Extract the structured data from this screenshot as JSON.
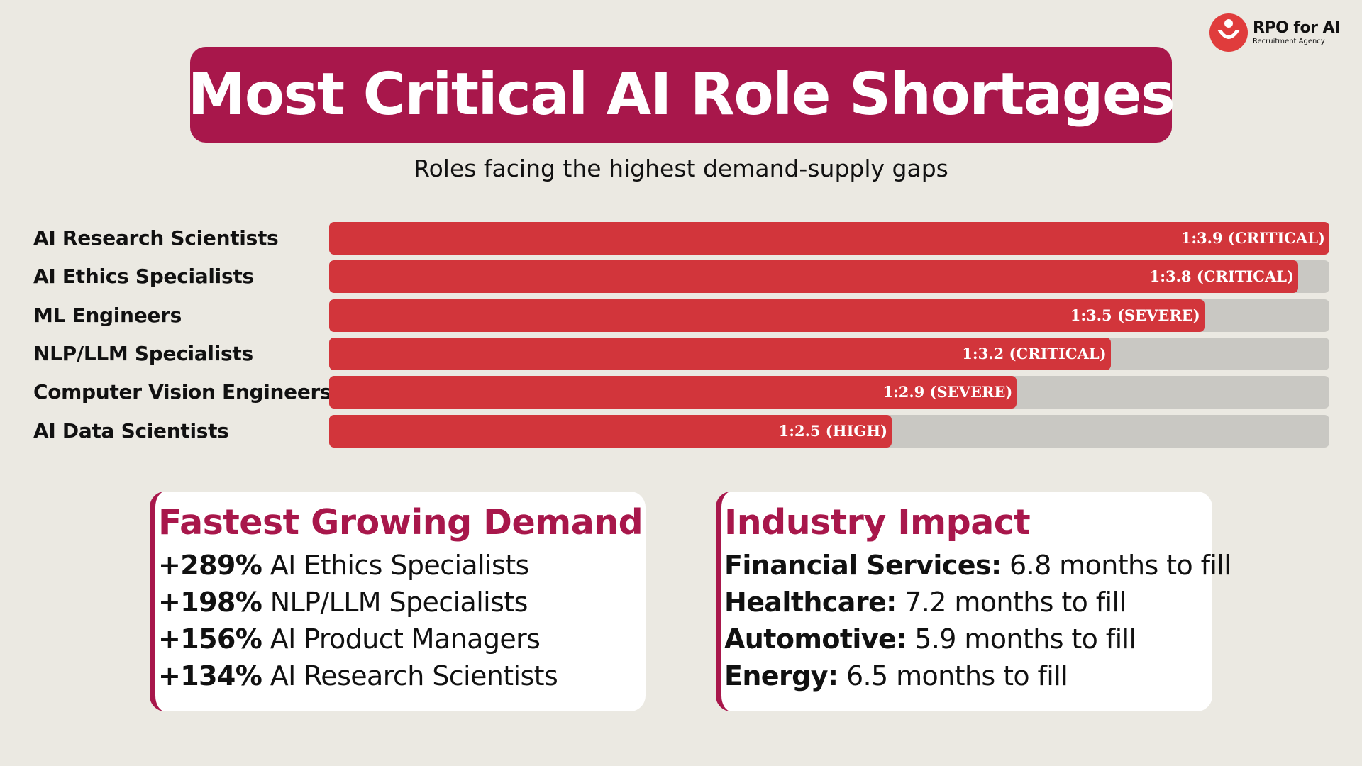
{
  "logo": {
    "name": "RPO for AI",
    "sub": "Recruitment Agency",
    "brand_color": "#e03c3c"
  },
  "title": "Most Critical AI Role Shortages",
  "subtitle": "Roles facing the highest demand-supply gaps",
  "colors": {
    "accent": "#a8174b",
    "bar": "#d2353b",
    "track": "#c9c8c3",
    "background": "#ebe9e2"
  },
  "chart_data": {
    "type": "bar",
    "orientation": "horizontal",
    "categories": [
      "AI Research Scientists",
      "AI Ethics Specialists",
      "ML Engineers",
      "NLP/LLM Specialists",
      "Computer Vision Engineers",
      "AI Data Scientists"
    ],
    "values": [
      3.9,
      3.8,
      3.5,
      3.2,
      2.9,
      2.5
    ],
    "value_labels": [
      "1:3.9 (CRITICAL)",
      "1:3.8 (CRITICAL)",
      "1:3.5 (SEVERE)",
      "1:3.2 (CRITICAL)",
      "1:2.9 (SEVERE)",
      "1:2.5 (HIGH)"
    ],
    "xlim": [
      0.7,
      3.9
    ],
    "grid": false,
    "legend": "none",
    "title": "",
    "xlabel": "",
    "ylabel": ""
  },
  "cards": {
    "demand": {
      "title": "Fastest Growing Demand",
      "items": [
        {
          "value": "+289%",
          "label": " AI Ethics Specialists"
        },
        {
          "value": "+198%",
          "label": " NLP/LLM Specialists"
        },
        {
          "value": "+156%",
          "label": " AI Product Managers"
        },
        {
          "value": "+134%",
          "label": " AI Research Scientists"
        }
      ]
    },
    "industry": {
      "title": "Industry Impact",
      "items": [
        {
          "value": "Financial Services:",
          "label": " 6.8 months to fill"
        },
        {
          "value": "Healthcare:",
          "label": " 7.2 months to fill"
        },
        {
          "value": "Automotive:",
          "label": " 5.9 months to fill"
        },
        {
          "value": "Energy:",
          "label": " 6.5 months to fill"
        }
      ]
    }
  }
}
